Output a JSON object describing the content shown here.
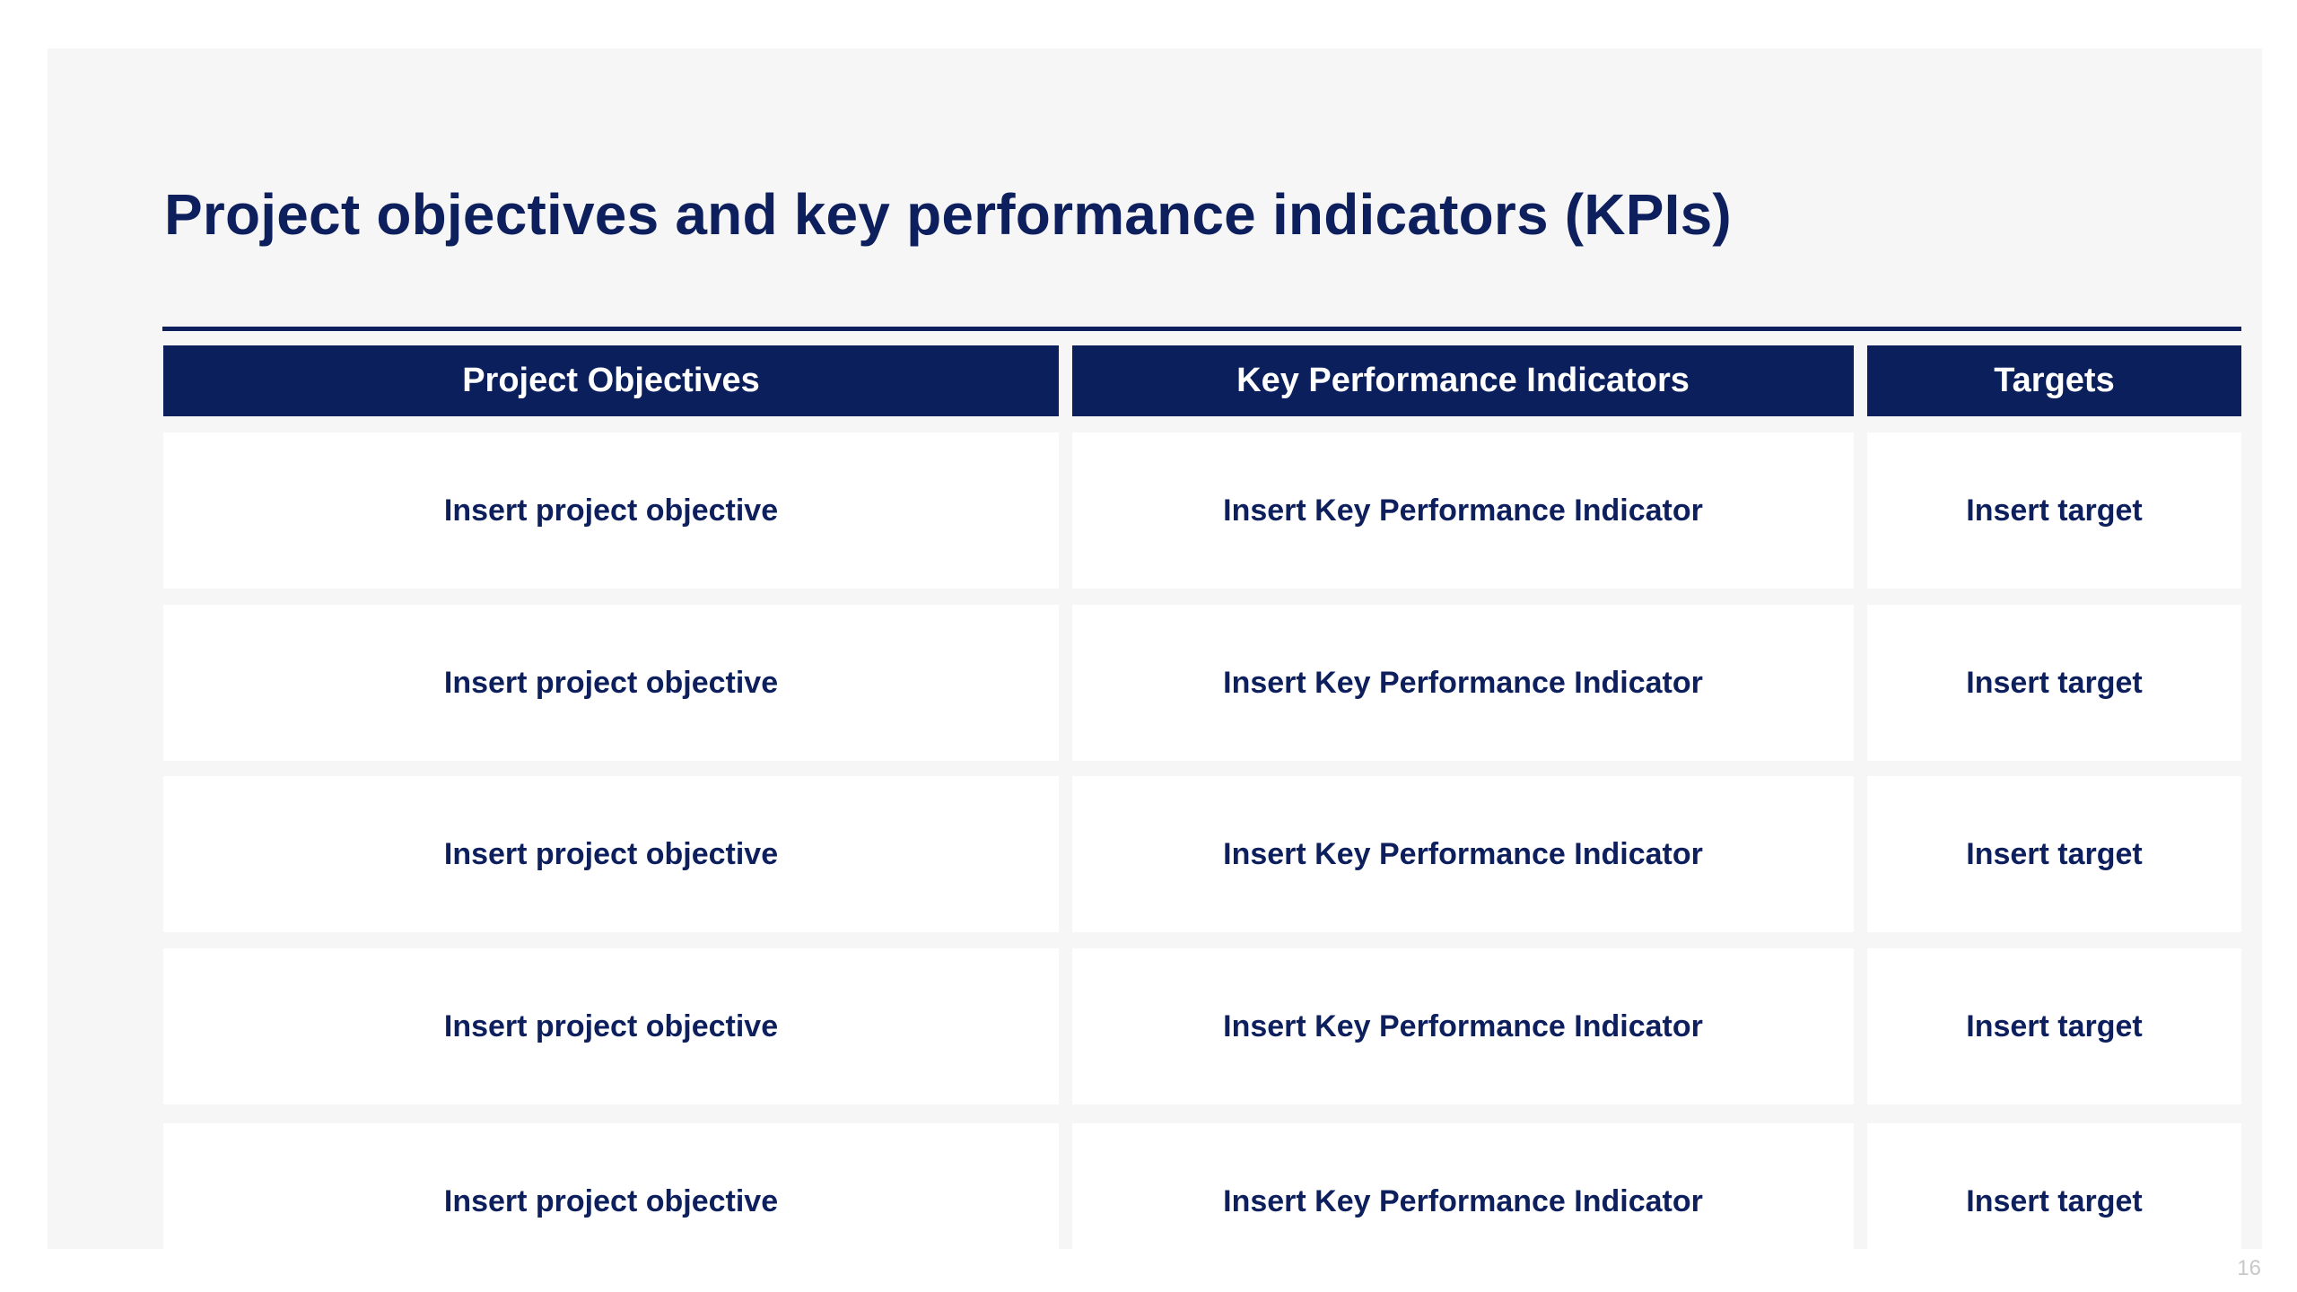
{
  "title": "Project objectives and key performance indicators (KPIs)",
  "table": {
    "headers": [
      "Project Objectives",
      "Key Performance Indicators",
      "Targets"
    ],
    "rows": [
      [
        "Insert project objective",
        "Insert Key Performance Indicator",
        "Insert target"
      ],
      [
        "Insert project objective",
        "Insert Key Performance Indicator",
        "Insert target"
      ],
      [
        "Insert project objective",
        "Insert Key Performance Indicator",
        "Insert target"
      ],
      [
        "Insert project objective",
        "Insert Key Performance Indicator",
        "Insert target"
      ],
      [
        "Insert project objective",
        "Insert Key Performance Indicator",
        "Insert target"
      ]
    ]
  },
  "page_number": "16",
  "colors": {
    "header_bg": "#0a1f5c",
    "text_navy": "#0d1f5c",
    "slide_bg": "#f6f6f6",
    "cell_bg": "#ffffff"
  }
}
